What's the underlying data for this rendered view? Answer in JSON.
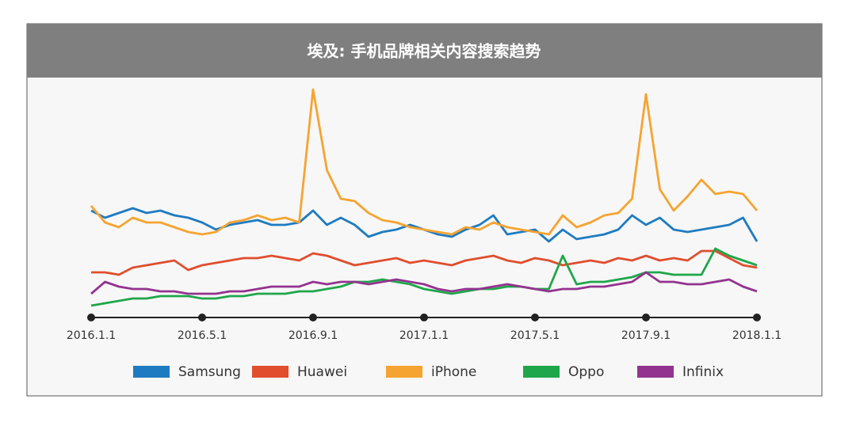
{
  "chart_data": {
    "type": "line",
    "title": "埃及: 手机品牌相关内容搜索趋势",
    "categories": [
      "2016.1.1",
      null,
      null,
      null,
      null,
      null,
      null,
      null,
      "2016.5.1",
      null,
      null,
      null,
      null,
      null,
      null,
      null,
      "2016.9.1",
      null,
      null,
      null,
      null,
      null,
      null,
      null,
      "2017.1.1",
      null,
      null,
      null,
      null,
      null,
      null,
      null,
      "2017.5.1",
      null,
      null,
      null,
      null,
      null,
      null,
      null,
      "2017.9.1",
      null,
      null,
      null,
      null,
      null,
      null,
      null,
      "2018.1.1"
    ],
    "ylim": [
      0,
      100
    ],
    "series": [
      {
        "name": "Samsung",
        "color": "#1f7bc1",
        "values": [
          45,
          42,
          44,
          46,
          44,
          45,
          43,
          42,
          40,
          37,
          39,
          40,
          41,
          39,
          39,
          40,
          45,
          39,
          42,
          39,
          34,
          36,
          37,
          39,
          37,
          35,
          34,
          37,
          39,
          43,
          35,
          36,
          37,
          32,
          37,
          33,
          34,
          35,
          37,
          43,
          39,
          42,
          37,
          36,
          37,
          38,
          39,
          42,
          32
        ]
      },
      {
        "name": "Huawei",
        "color": "#e04e2e",
        "values": [
          19,
          19,
          18,
          21,
          22,
          23,
          24,
          20,
          22,
          23,
          24,
          25,
          25,
          26,
          25,
          24,
          27,
          26,
          24,
          22,
          23,
          24,
          25,
          23,
          24,
          23,
          22,
          24,
          25,
          26,
          24,
          23,
          25,
          24,
          22,
          23,
          24,
          23,
          25,
          24,
          26,
          24,
          25,
          24,
          28,
          28,
          25,
          22,
          21
        ]
      },
      {
        "name": "iPhone",
        "color": "#f5a431",
        "values": [
          47,
          40,
          38,
          42,
          40,
          40,
          38,
          36,
          35,
          36,
          40,
          41,
          43,
          41,
          42,
          40,
          96,
          62,
          50,
          49,
          44,
          41,
          40,
          38,
          37,
          36,
          35,
          38,
          37,
          40,
          38,
          37,
          36,
          35,
          43,
          38,
          40,
          43,
          44,
          50,
          94,
          54,
          45,
          51,
          58,
          52,
          53,
          52,
          45
        ]
      },
      {
        "name": "Oppo",
        "color": "#1fa64a",
        "values": [
          5,
          6,
          7,
          8,
          8,
          9,
          9,
          9,
          8,
          8,
          9,
          9,
          10,
          10,
          10,
          11,
          11,
          12,
          13,
          15,
          15,
          16,
          15,
          14,
          12,
          11,
          10,
          11,
          12,
          12,
          13,
          13,
          12,
          12,
          26,
          14,
          15,
          15,
          16,
          17,
          19,
          19,
          18,
          18,
          18,
          29,
          26,
          24,
          22
        ]
      },
      {
        "name": "Infinix",
        "color": "#93338f",
        "values": [
          10,
          15,
          13,
          12,
          12,
          11,
          11,
          10,
          10,
          10,
          11,
          11,
          12,
          13,
          13,
          13,
          15,
          14,
          15,
          15,
          14,
          15,
          16,
          15,
          14,
          12,
          11,
          12,
          12,
          13,
          14,
          13,
          12,
          11,
          12,
          12,
          13,
          13,
          14,
          15,
          19,
          15,
          15,
          14,
          14,
          15,
          16,
          13,
          11
        ]
      }
    ]
  }
}
